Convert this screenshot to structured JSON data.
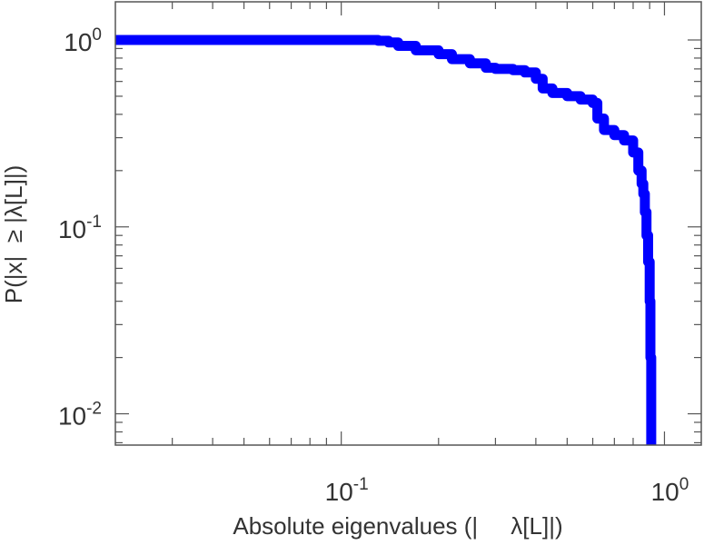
{
  "chart_data": {
    "type": "line",
    "title": "",
    "xlabel": "Absolute eigenvalues (|     λ[L]|)",
    "ylabel": "P(|x|  ≥ |λ[L]|)",
    "xscale": "log",
    "yscale": "log",
    "xlim": [
      0.02,
      1.3
    ],
    "ylim": [
      0.0068,
      1.6
    ],
    "grid": false,
    "legend": "none",
    "x_ticks": [
      {
        "value": 0.1,
        "base": "10",
        "exp": "-1"
      },
      {
        "value": 1,
        "base": "10",
        "exp": "0"
      }
    ],
    "y_ticks": [
      {
        "value": 1,
        "base": "10",
        "exp": "0"
      },
      {
        "value": 0.1,
        "base": "10",
        "exp": "-1"
      },
      {
        "value": 0.01,
        "base": "10",
        "exp": "-2"
      }
    ],
    "series": [
      {
        "color": "#0000ff",
        "x": [
          0.02,
          0.05,
          0.1,
          0.13,
          0.14,
          0.15,
          0.17,
          0.2,
          0.22,
          0.25,
          0.28,
          0.3,
          0.34,
          0.37,
          0.4,
          0.42,
          0.45,
          0.5,
          0.55,
          0.6,
          0.62,
          0.65,
          0.7,
          0.75,
          0.8,
          0.83,
          0.85,
          0.86,
          0.87,
          0.88,
          0.89,
          0.9,
          0.905,
          0.91
        ],
        "y": [
          1.0,
          1.0,
          1.0,
          0.99,
          0.97,
          0.93,
          0.88,
          0.84,
          0.79,
          0.75,
          0.71,
          0.7,
          0.69,
          0.67,
          0.62,
          0.55,
          0.52,
          0.5,
          0.48,
          0.46,
          0.38,
          0.33,
          0.31,
          0.29,
          0.25,
          0.2,
          0.17,
          0.15,
          0.12,
          0.09,
          0.065,
          0.04,
          0.02,
          0.008
        ]
      }
    ]
  }
}
